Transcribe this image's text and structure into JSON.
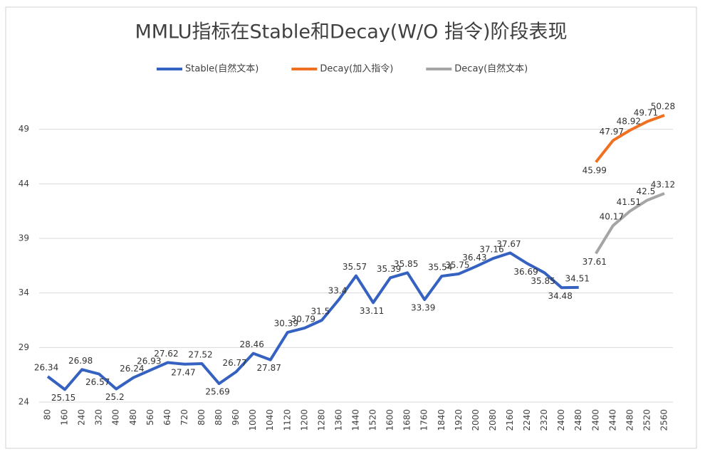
{
  "chart_data": {
    "type": "line",
    "title": "MMLU指标在Stable和Decay(W/O 指令)阶段表现",
    "categories": [
      "80",
      "160",
      "240",
      "320",
      "400",
      "480",
      "560",
      "640",
      "720",
      "800",
      "880",
      "960",
      "1000",
      "1040",
      "1120",
      "1200",
      "1280",
      "1360",
      "1440",
      "1520",
      "1600",
      "1680",
      "1760",
      "1840",
      "1920",
      "2000",
      "2080",
      "2160",
      "2240",
      "2320",
      "2400",
      "2480",
      "2400",
      "2440",
      "2480",
      "2520",
      "2560"
    ],
    "series": [
      {
        "name": "Stable(自然文本)",
        "color": "#3561c0",
        "values": [
          26.34,
          25.15,
          26.98,
          26.57,
          25.2,
          26.24,
          26.93,
          27.62,
          27.47,
          27.52,
          25.69,
          26.77,
          28.46,
          27.87,
          30.39,
          30.79,
          31.5,
          33.4,
          35.57,
          33.11,
          35.39,
          35.85,
          33.39,
          35.54,
          35.75,
          36.43,
          37.16,
          37.67,
          36.69,
          35.85,
          34.48,
          34.51,
          null,
          null,
          null,
          null,
          null
        ]
      },
      {
        "name": "Decay(加入指令)",
        "color": "#f07022",
        "values": [
          null,
          null,
          null,
          null,
          null,
          null,
          null,
          null,
          null,
          null,
          null,
          null,
          null,
          null,
          null,
          null,
          null,
          null,
          null,
          null,
          null,
          null,
          null,
          null,
          null,
          null,
          null,
          null,
          null,
          null,
          null,
          null,
          45.99,
          47.97,
          48.92,
          49.71,
          50.28
        ]
      },
      {
        "name": "Decay(自然文本)",
        "color": "#a5a5a5",
        "values": [
          null,
          null,
          null,
          null,
          null,
          null,
          null,
          null,
          null,
          null,
          null,
          null,
          null,
          null,
          null,
          null,
          null,
          null,
          null,
          null,
          null,
          null,
          null,
          null,
          null,
          null,
          null,
          null,
          null,
          null,
          null,
          null,
          37.61,
          40.17,
          41.51,
          42.5,
          43.12
        ]
      }
    ],
    "ylim": [
      24,
      54
    ],
    "yticks": [
      24,
      29,
      34,
      39,
      44,
      49
    ],
    "grid": true,
    "legend": "top"
  }
}
